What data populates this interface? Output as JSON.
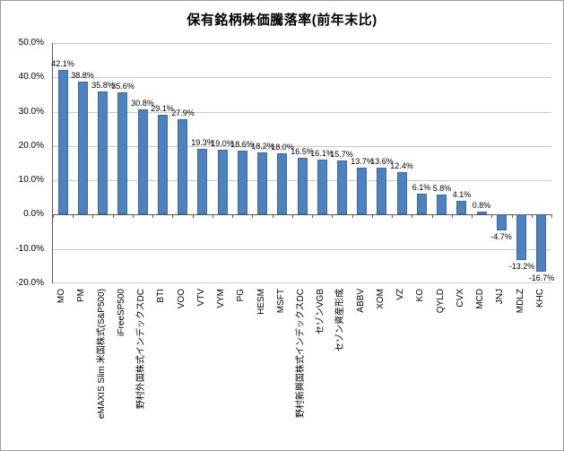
{
  "chart_data": {
    "type": "bar",
    "title": "保有銘柄株価騰落率(前年末比)",
    "categories": [
      "MO",
      "PM",
      "eMAXIS Slim 米国株式(S&P500)",
      "iFreeSP500",
      "野村外国株式インデックスDC",
      "BTI",
      "VOO",
      "VTV",
      "VYM",
      "PG",
      "HESM",
      "MSFT",
      "野村新興国株式インデックスDC",
      "セゾンVGB",
      "セゾン資産形成",
      "ABBV",
      "XOM",
      "VZ",
      "KO",
      "QYLD",
      "CVX",
      "MCD",
      "JNJ",
      "MDLZ",
      "KHC"
    ],
    "values": [
      42.1,
      38.8,
      35.8,
      35.6,
      30.8,
      29.1,
      27.9,
      19.3,
      19.0,
      18.6,
      18.2,
      18.0,
      16.5,
      16.1,
      15.7,
      13.7,
      13.6,
      12.4,
      6.1,
      5.8,
      4.1,
      0.8,
      -4.7,
      -13.2,
      -16.7
    ],
    "value_labels": [
      "42.1%",
      "38.8%",
      "35.8%",
      "35.6%",
      "30.8%",
      "29.1%",
      "27.9%",
      "19.3%",
      "19.0%",
      "18.6%",
      "18.2%",
      "18.0%",
      "16.5%",
      "16.1%",
      "15.7%",
      "13.7%",
      "13.6%",
      "12.4%",
      "6.1%",
      "5.8%",
      "4.1%",
      "0.8%",
      "-4.7%",
      "-13.2%",
      "-16.7%"
    ],
    "ylim": [
      -20,
      50
    ],
    "yticks": [
      50,
      40,
      30,
      20,
      10,
      0,
      -10,
      -20
    ],
    "ytick_labels": [
      "50.0%",
      "40.0%",
      "30.0%",
      "20.0%",
      "10.0%",
      "0.0%",
      "-10.0%",
      "-20.0%"
    ],
    "bar_color": "#4f81bd",
    "bar_border_color": "#3a6aa0",
    "grid": true,
    "legend": "none"
  }
}
